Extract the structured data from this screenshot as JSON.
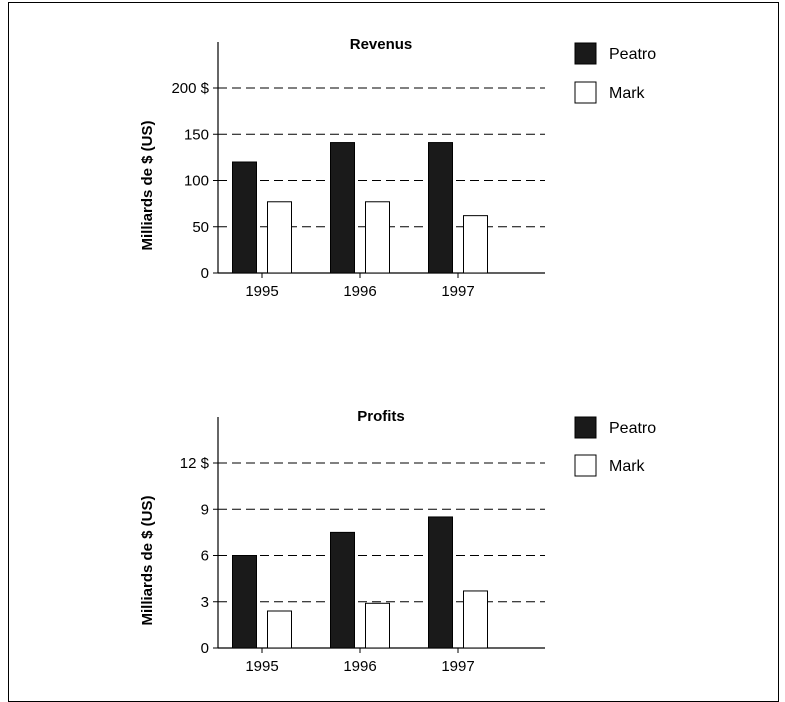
{
  "chart_data": [
    {
      "type": "bar",
      "title": "Revenus",
      "ylabel": "Milliards de $ (US)",
      "xlabel": "",
      "categories": [
        "1995",
        "1996",
        "1997"
      ],
      "ylim": [
        0,
        200
      ],
      "yticks": [
        0,
        50,
        100,
        150,
        200
      ],
      "ytick_labels": [
        "0",
        "50",
        "100",
        "150",
        "200 $"
      ],
      "grid": "dashed-horizontal",
      "legend": "top-right",
      "series": [
        {
          "name": "Peatro",
          "color": "#1a1a1a",
          "values": [
            120,
            141,
            141
          ]
        },
        {
          "name": "Mark",
          "color": "#ffffff",
          "values": [
            77,
            77,
            62
          ]
        }
      ]
    },
    {
      "type": "bar",
      "title": "Profits",
      "ylabel": "Milliards de $ (US)",
      "xlabel": "",
      "categories": [
        "1995",
        "1996",
        "1997"
      ],
      "ylim": [
        0,
        12
      ],
      "yticks": [
        0,
        3,
        6,
        9,
        12
      ],
      "ytick_labels": [
        "0",
        "3",
        "6",
        "9",
        "12 $"
      ],
      "grid": "dashed-horizontal",
      "legend": "top-right",
      "series": [
        {
          "name": "Peatro",
          "color": "#1a1a1a",
          "values": [
            6.0,
            7.5,
            8.5
          ]
        },
        {
          "name": "Mark",
          "color": "#ffffff",
          "values": [
            2.4,
            2.9,
            3.7
          ]
        }
      ]
    }
  ]
}
